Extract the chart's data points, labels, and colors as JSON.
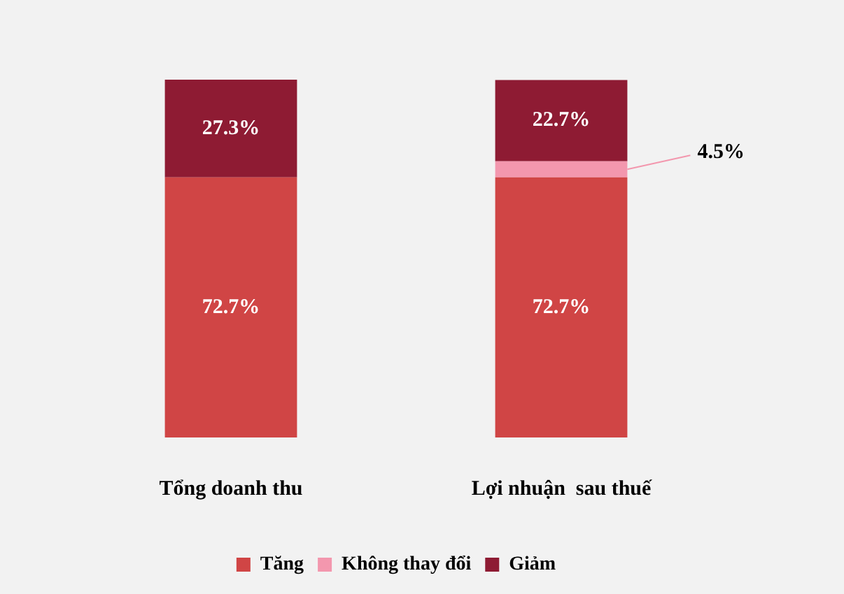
{
  "chart_data": {
    "type": "bar",
    "stacked": true,
    "categories": [
      "Tổng doanh thu",
      "Lợi nhuận  sau thuế"
    ],
    "series": [
      {
        "name": "Tăng",
        "color": "#d04545",
        "values": [
          72.7,
          72.7
        ],
        "value_labels": [
          "72.7%",
          "72.7%"
        ]
      },
      {
        "name": "Không thay đổi",
        "color": "#f397ae",
        "values": [
          0,
          4.5
        ],
        "value_labels": [
          null,
          "4.5%"
        ]
      },
      {
        "name": "Giảm",
        "color": "#8e1b33",
        "values": [
          27.3,
          22.7
        ],
        "value_labels": [
          "27.3%",
          "22.7%"
        ]
      }
    ],
    "ylim": [
      0,
      100
    ],
    "tick_labels": "x",
    "grid": false,
    "legend": "bottom"
  }
}
